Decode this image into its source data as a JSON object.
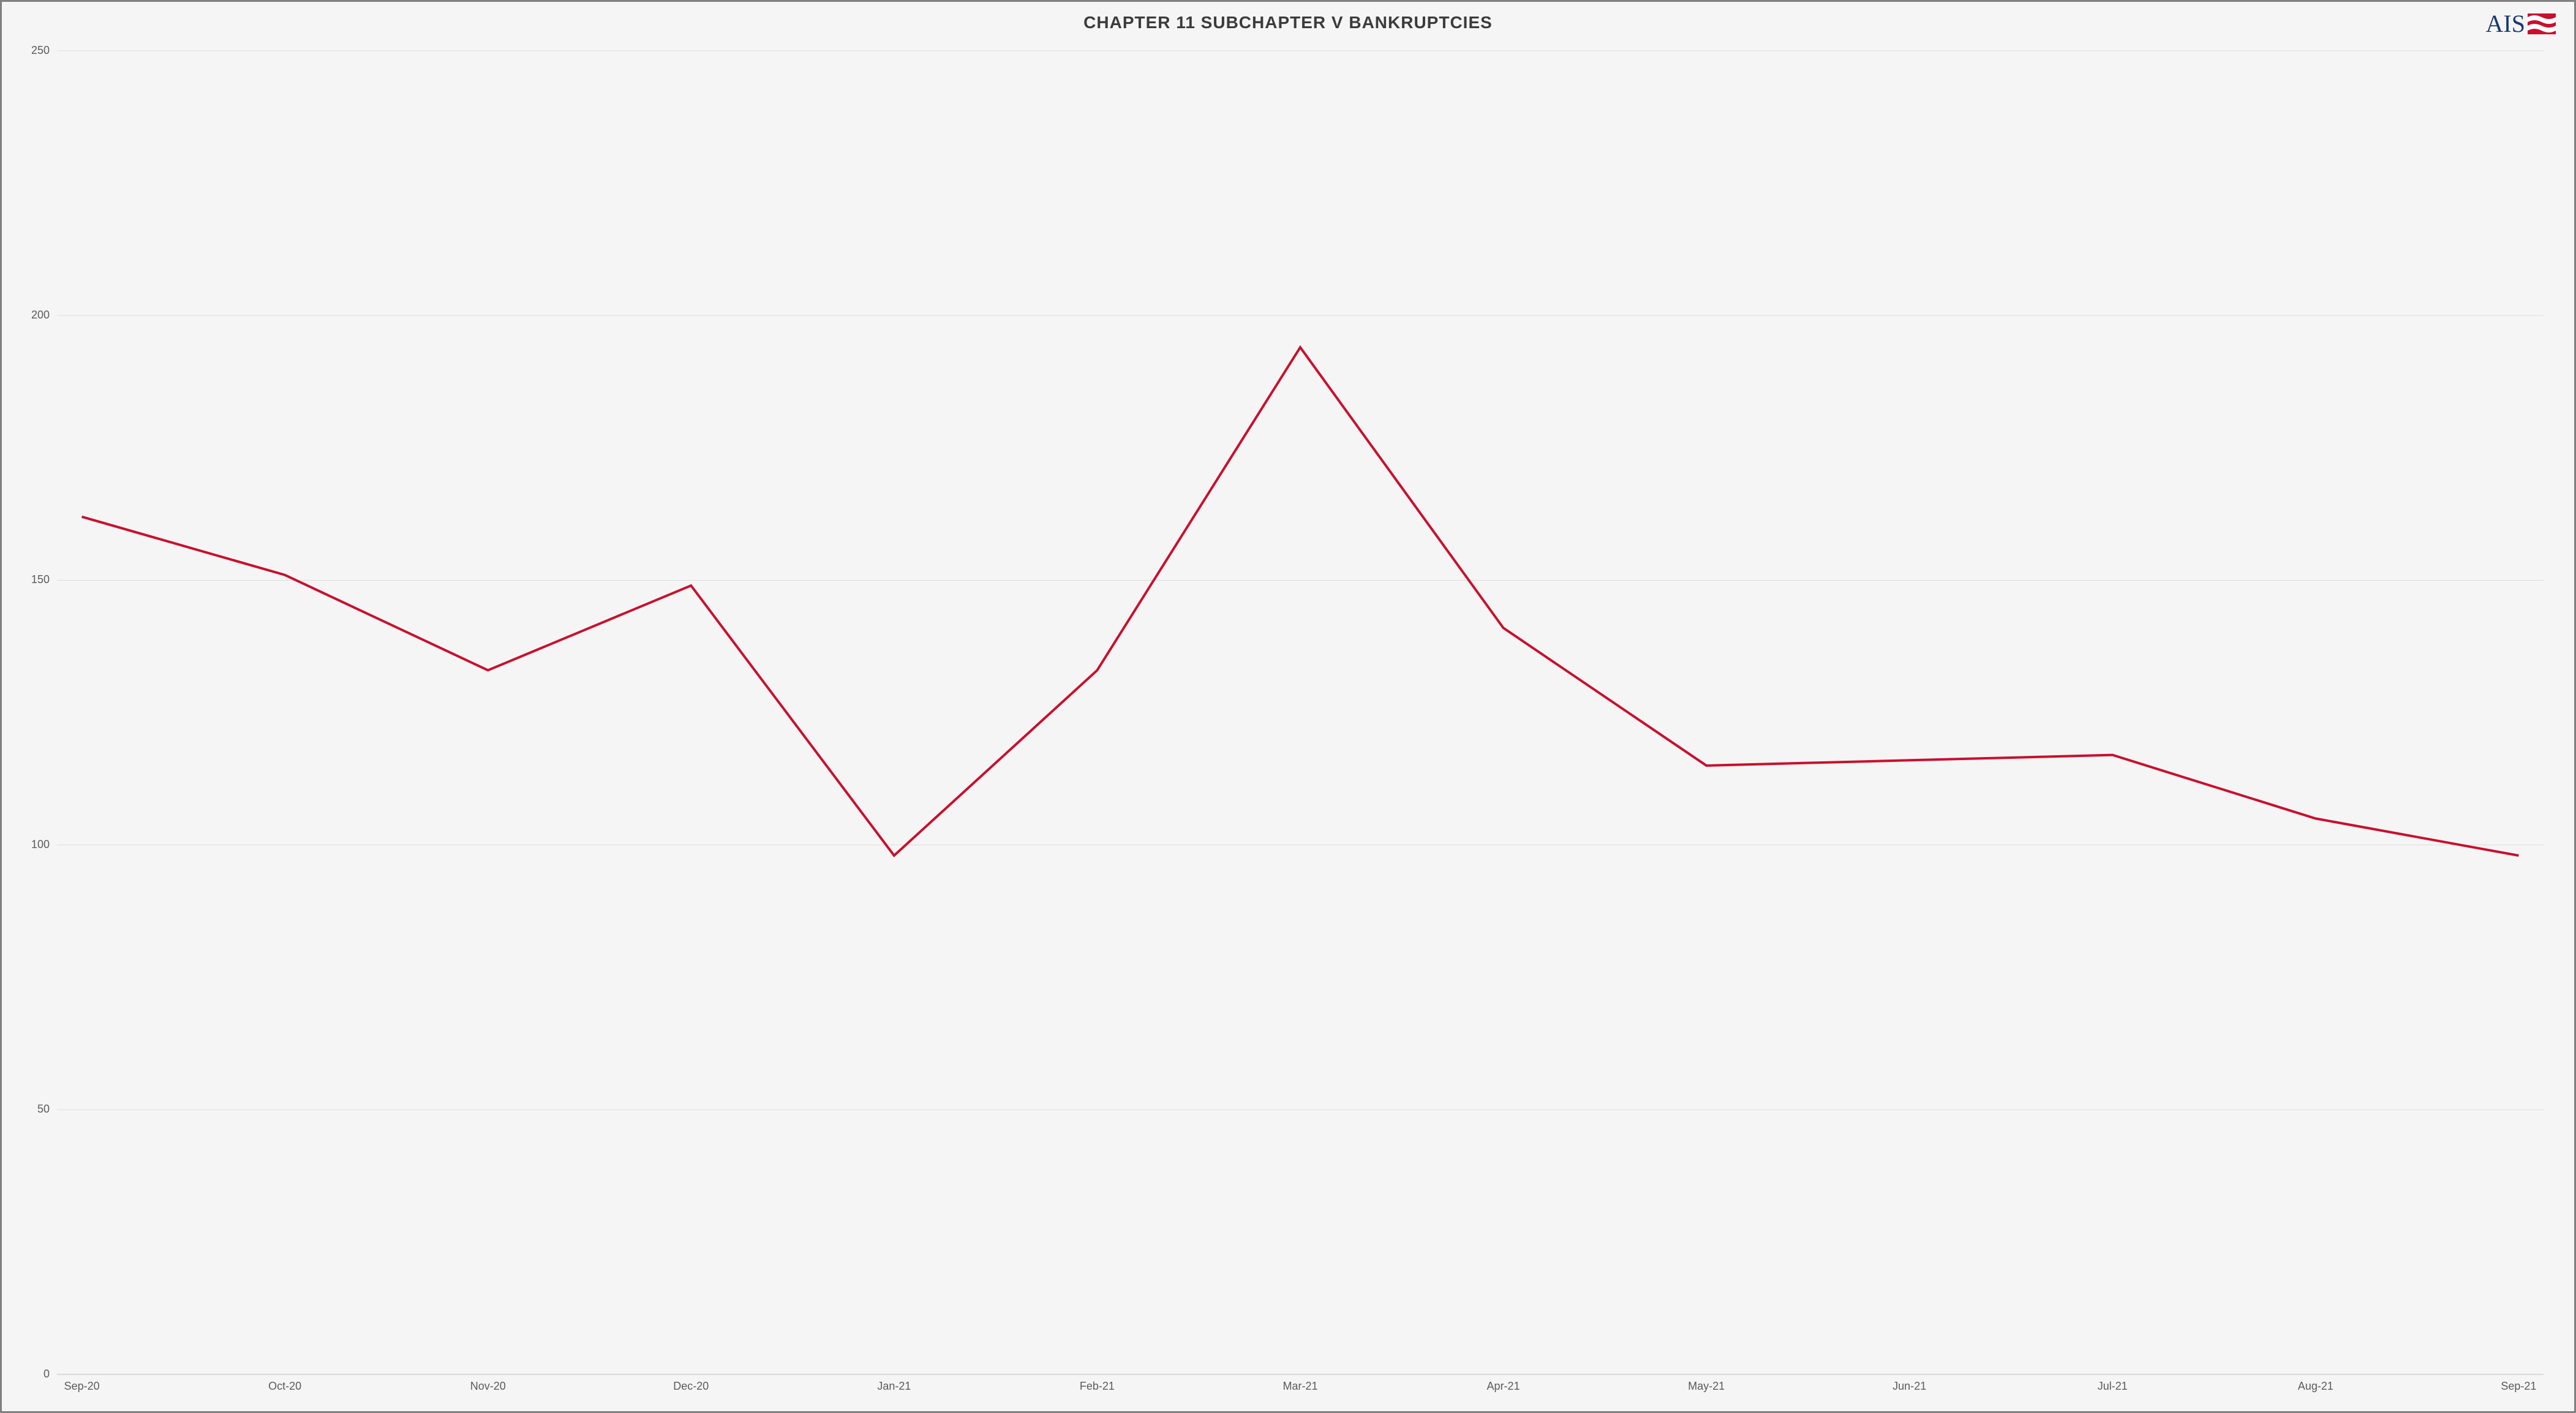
{
  "chart": {
    "type": "line",
    "title": "CHAPTER 11 SUBCHAPTER V BANKRUPTCIES",
    "title_color": "#3b3b3b",
    "title_fontsize": 28,
    "title_fontweight": 700,
    "background_color": "#f5f5f5",
    "border_color": "#808080",
    "border_width": 3,
    "categories": [
      "Sep-20",
      "Oct-20",
      "Nov-20",
      "Dec-20",
      "Jan-21",
      "Feb-21",
      "Mar-21",
      "Apr-21",
      "May-21",
      "Jun-21",
      "Jul-21",
      "Aug-21",
      "Sep-21"
    ],
    "values": [
      162,
      151,
      133,
      149,
      98,
      133,
      194,
      141,
      115,
      116,
      117,
      105,
      98
    ],
    "line_color": "#c8102e",
    "line_width": 4,
    "ylim": [
      0,
      250
    ],
    "ytick_step": 50,
    "yticks": [
      0,
      50,
      100,
      150,
      200,
      250
    ],
    "grid_color": "#dddddd",
    "baseline_color": "#bfbfbf",
    "axis_label_color": "#5a5a5a",
    "axis_label_fontsize": 18
  },
  "logo": {
    "text": "AIS",
    "text_color": "#1a3a6e",
    "flag_red": "#c8102e",
    "flag_white": "#ffffff"
  }
}
